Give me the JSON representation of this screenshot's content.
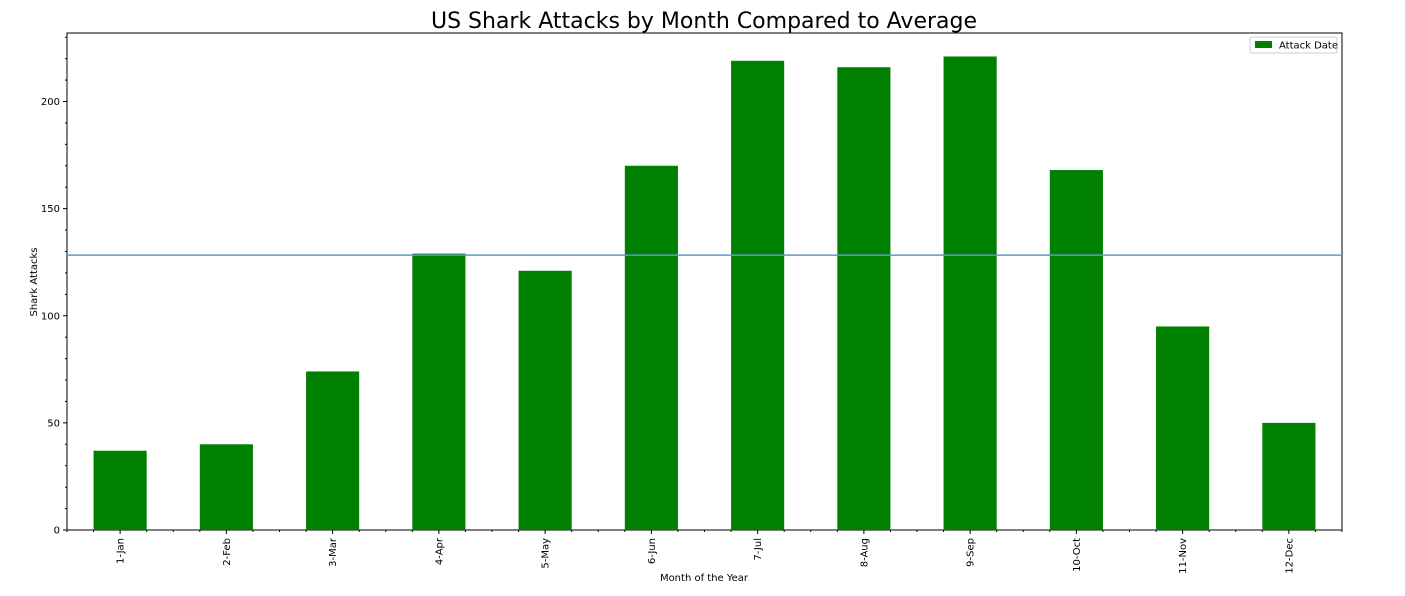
{
  "chart_data": {
    "type": "bar",
    "title": "US Shark Attacks by Month Compared to Average",
    "xlabel": "Month of the Year",
    "ylabel": "Shark Attacks",
    "categories": [
      "1-Jan",
      "2-Feb",
      "3-Mar",
      "4-Apr",
      "5-May",
      "6-Jun",
      "7-Jul",
      "8-Aug",
      "9-Sep",
      "10-Oct",
      "11-Nov",
      "12-Dec"
    ],
    "series": [
      {
        "name": "Attack Date",
        "color": "#008000",
        "values": [
          37,
          40,
          74,
          129,
          121,
          170,
          219,
          216,
          221,
          168,
          95,
          50
        ]
      }
    ],
    "average_line": {
      "value": 128.3,
      "color": "#5b9bc9"
    },
    "ylim": [
      0,
      232
    ],
    "yticks": [
      0,
      50,
      100,
      150,
      200
    ],
    "grid": false,
    "legend_position": "top-right"
  }
}
